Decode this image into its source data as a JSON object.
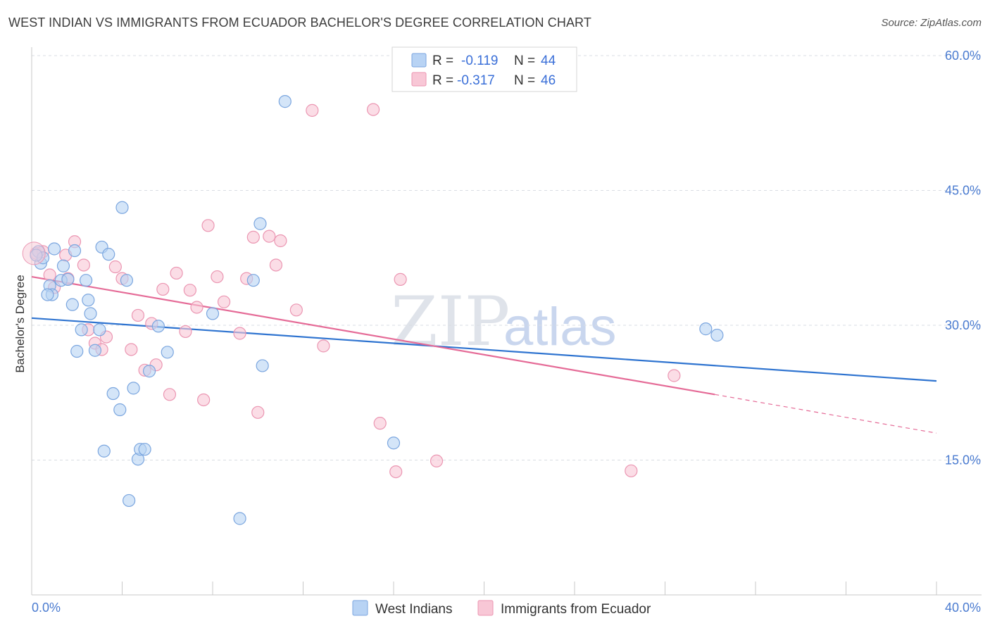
{
  "title": "WEST INDIAN VS IMMIGRANTS FROM ECUADOR BACHELOR'S DEGREE CORRELATION CHART",
  "source": "Source: ZipAtlas.com",
  "watermark": {
    "zip": "ZIP",
    "atlas": "atlas"
  },
  "colors": {
    "blue_fill": "#b8d3f4",
    "blue_stroke": "#7ba6df",
    "blue_line": "#2f74d0",
    "pink_fill": "#f8c7d6",
    "pink_stroke": "#eb96b2",
    "pink_line": "#e56b97",
    "grid": "#d9dde3",
    "axis": "#c8c8c8",
    "tick_label": "#4a7bd0"
  },
  "legend": {
    "r_label": "R =",
    "n_label": "N =",
    "entries": [
      {
        "r": "-0.119",
        "n": "44"
      },
      {
        "r": "-0.317",
        "n": "46"
      }
    ]
  },
  "chart_data": {
    "type": "scatter",
    "title": "WEST INDIAN VS IMMIGRANTS FROM ECUADOR BACHELOR'S DEGREE CORRELATION CHART",
    "xlabel": "",
    "ylabel": "Bachelor's Degree",
    "xlim": [
      0,
      40
    ],
    "ylim": [
      0,
      60
    ],
    "x_tick_labels": [
      "0.0%",
      "40.0%"
    ],
    "y_ticks": [
      15,
      30,
      45,
      60
    ],
    "y_tick_labels": [
      "15.0%",
      "30.0%",
      "45.0%",
      "60.0%"
    ],
    "grid": true,
    "legend_position": "top-center",
    "series": [
      {
        "name": "West Indians",
        "color": "#b8d3f4",
        "points": [
          [
            0.3,
            38.2
          ],
          [
            0.4,
            36.9
          ],
          [
            0.5,
            37.5
          ],
          [
            0.8,
            34.4
          ],
          [
            0.9,
            33.4
          ],
          [
            1.0,
            38.5
          ],
          [
            1.3,
            35.0
          ],
          [
            1.4,
            36.6
          ],
          [
            1.6,
            35.1
          ],
          [
            1.8,
            32.3
          ],
          [
            1.9,
            38.3
          ],
          [
            2.0,
            27.1
          ],
          [
            2.2,
            29.5
          ],
          [
            2.4,
            35.0
          ],
          [
            2.5,
            32.8
          ],
          [
            2.6,
            31.3
          ],
          [
            2.8,
            27.2
          ],
          [
            3.0,
            29.5
          ],
          [
            3.1,
            38.7
          ],
          [
            3.2,
            16.0
          ],
          [
            3.4,
            37.9
          ],
          [
            3.6,
            22.4
          ],
          [
            3.9,
            20.6
          ],
          [
            4.0,
            43.1
          ],
          [
            4.2,
            35.0
          ],
          [
            4.3,
            10.5
          ],
          [
            4.5,
            23.0
          ],
          [
            4.7,
            15.1
          ],
          [
            4.8,
            16.2
          ],
          [
            5.0,
            16.2
          ],
          [
            5.2,
            24.9
          ],
          [
            5.6,
            29.9
          ],
          [
            6.0,
            27.0
          ],
          [
            8.0,
            31.3
          ],
          [
            9.2,
            8.5
          ],
          [
            9.8,
            35.0
          ],
          [
            10.1,
            41.3
          ],
          [
            10.2,
            25.5
          ],
          [
            11.2,
            54.9
          ],
          [
            16.0,
            16.9
          ],
          [
            29.8,
            29.6
          ],
          [
            30.3,
            28.9
          ],
          [
            0.7,
            33.4
          ],
          [
            0.2,
            37.8
          ]
        ]
      },
      {
        "name": "Immigrants from Ecuador",
        "color": "#f8c7d6",
        "points": [
          [
            0.2,
            38.0
          ],
          [
            0.5,
            38.2
          ],
          [
            0.8,
            35.6
          ],
          [
            1.0,
            34.2
          ],
          [
            1.5,
            37.8
          ],
          [
            1.6,
            35.2
          ],
          [
            1.9,
            39.3
          ],
          [
            2.3,
            36.7
          ],
          [
            2.5,
            29.5
          ],
          [
            2.8,
            28.0
          ],
          [
            3.1,
            27.3
          ],
          [
            3.3,
            28.7
          ],
          [
            3.7,
            36.5
          ],
          [
            4.0,
            35.2
          ],
          [
            4.4,
            27.3
          ],
          [
            4.7,
            31.1
          ],
          [
            5.0,
            25.0
          ],
          [
            5.3,
            30.2
          ],
          [
            5.5,
            25.6
          ],
          [
            5.8,
            34.0
          ],
          [
            6.1,
            22.3
          ],
          [
            6.4,
            35.8
          ],
          [
            6.8,
            29.3
          ],
          [
            7.0,
            33.9
          ],
          [
            7.3,
            32.0
          ],
          [
            7.6,
            21.7
          ],
          [
            7.8,
            41.1
          ],
          [
            8.2,
            35.4
          ],
          [
            8.5,
            32.6
          ],
          [
            9.2,
            29.1
          ],
          [
            9.5,
            35.2
          ],
          [
            9.8,
            39.8
          ],
          [
            10.0,
            20.3
          ],
          [
            10.5,
            39.9
          ],
          [
            10.8,
            36.7
          ],
          [
            11.0,
            39.4
          ],
          [
            11.7,
            31.7
          ],
          [
            12.4,
            53.9
          ],
          [
            12.9,
            27.7
          ],
          [
            15.1,
            54.0
          ],
          [
            15.4,
            19.1
          ],
          [
            16.1,
            13.7
          ],
          [
            16.3,
            35.1
          ],
          [
            17.9,
            14.9
          ],
          [
            26.5,
            13.8
          ],
          [
            28.4,
            24.4
          ]
        ]
      }
    ],
    "trend_lines": [
      {
        "series": "West Indians",
        "x": [
          0,
          40
        ],
        "y": [
          30.8,
          23.8
        ]
      },
      {
        "series": "Immigrants from Ecuador",
        "x": [
          0,
          30.2
        ],
        "y": [
          35.4,
          22.3
        ],
        "dashed_x": [
          30.2,
          40
        ],
        "dashed_y": [
          22.3,
          18.0
        ]
      }
    ]
  }
}
